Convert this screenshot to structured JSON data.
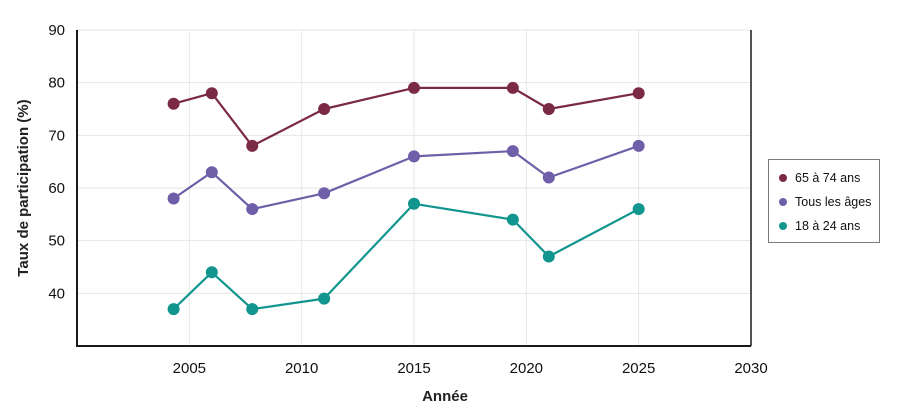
{
  "chart_data": {
    "type": "line",
    "xlabel": "Année",
    "ylabel": "Taux de participation (%)",
    "xlim": [
      2000,
      2030
    ],
    "ylim": [
      30,
      90
    ],
    "xticks": [
      2005,
      2010,
      2015,
      2020,
      2025,
      2030
    ],
    "yticks": [
      40,
      50,
      60,
      70,
      80,
      90
    ],
    "grid": true,
    "legend_position": "right",
    "series": [
      {
        "name": "65 à 74 ans",
        "color": "#7b2a45",
        "x": [
          2004.3,
          2006,
          2007.8,
          2011,
          2015,
          2019.4,
          2021,
          2025
        ],
        "y": [
          76,
          78,
          68,
          75,
          79,
          79,
          75,
          78
        ]
      },
      {
        "name": "Tous les âges",
        "color": "#6f5fa8",
        "x": [
          2004.3,
          2006,
          2007.8,
          2011,
          2015,
          2019.4,
          2021,
          2025
        ],
        "y": [
          58,
          63,
          56,
          59,
          66,
          67,
          62,
          68
        ]
      },
      {
        "name": "18 à 24 ans",
        "color": "#12958e",
        "x": [
          2004.3,
          2006,
          2007.8,
          2011,
          2015,
          2019.4,
          2021,
          2025
        ],
        "y": [
          37,
          44,
          37,
          39,
          57,
          54,
          47,
          56
        ]
      }
    ]
  }
}
